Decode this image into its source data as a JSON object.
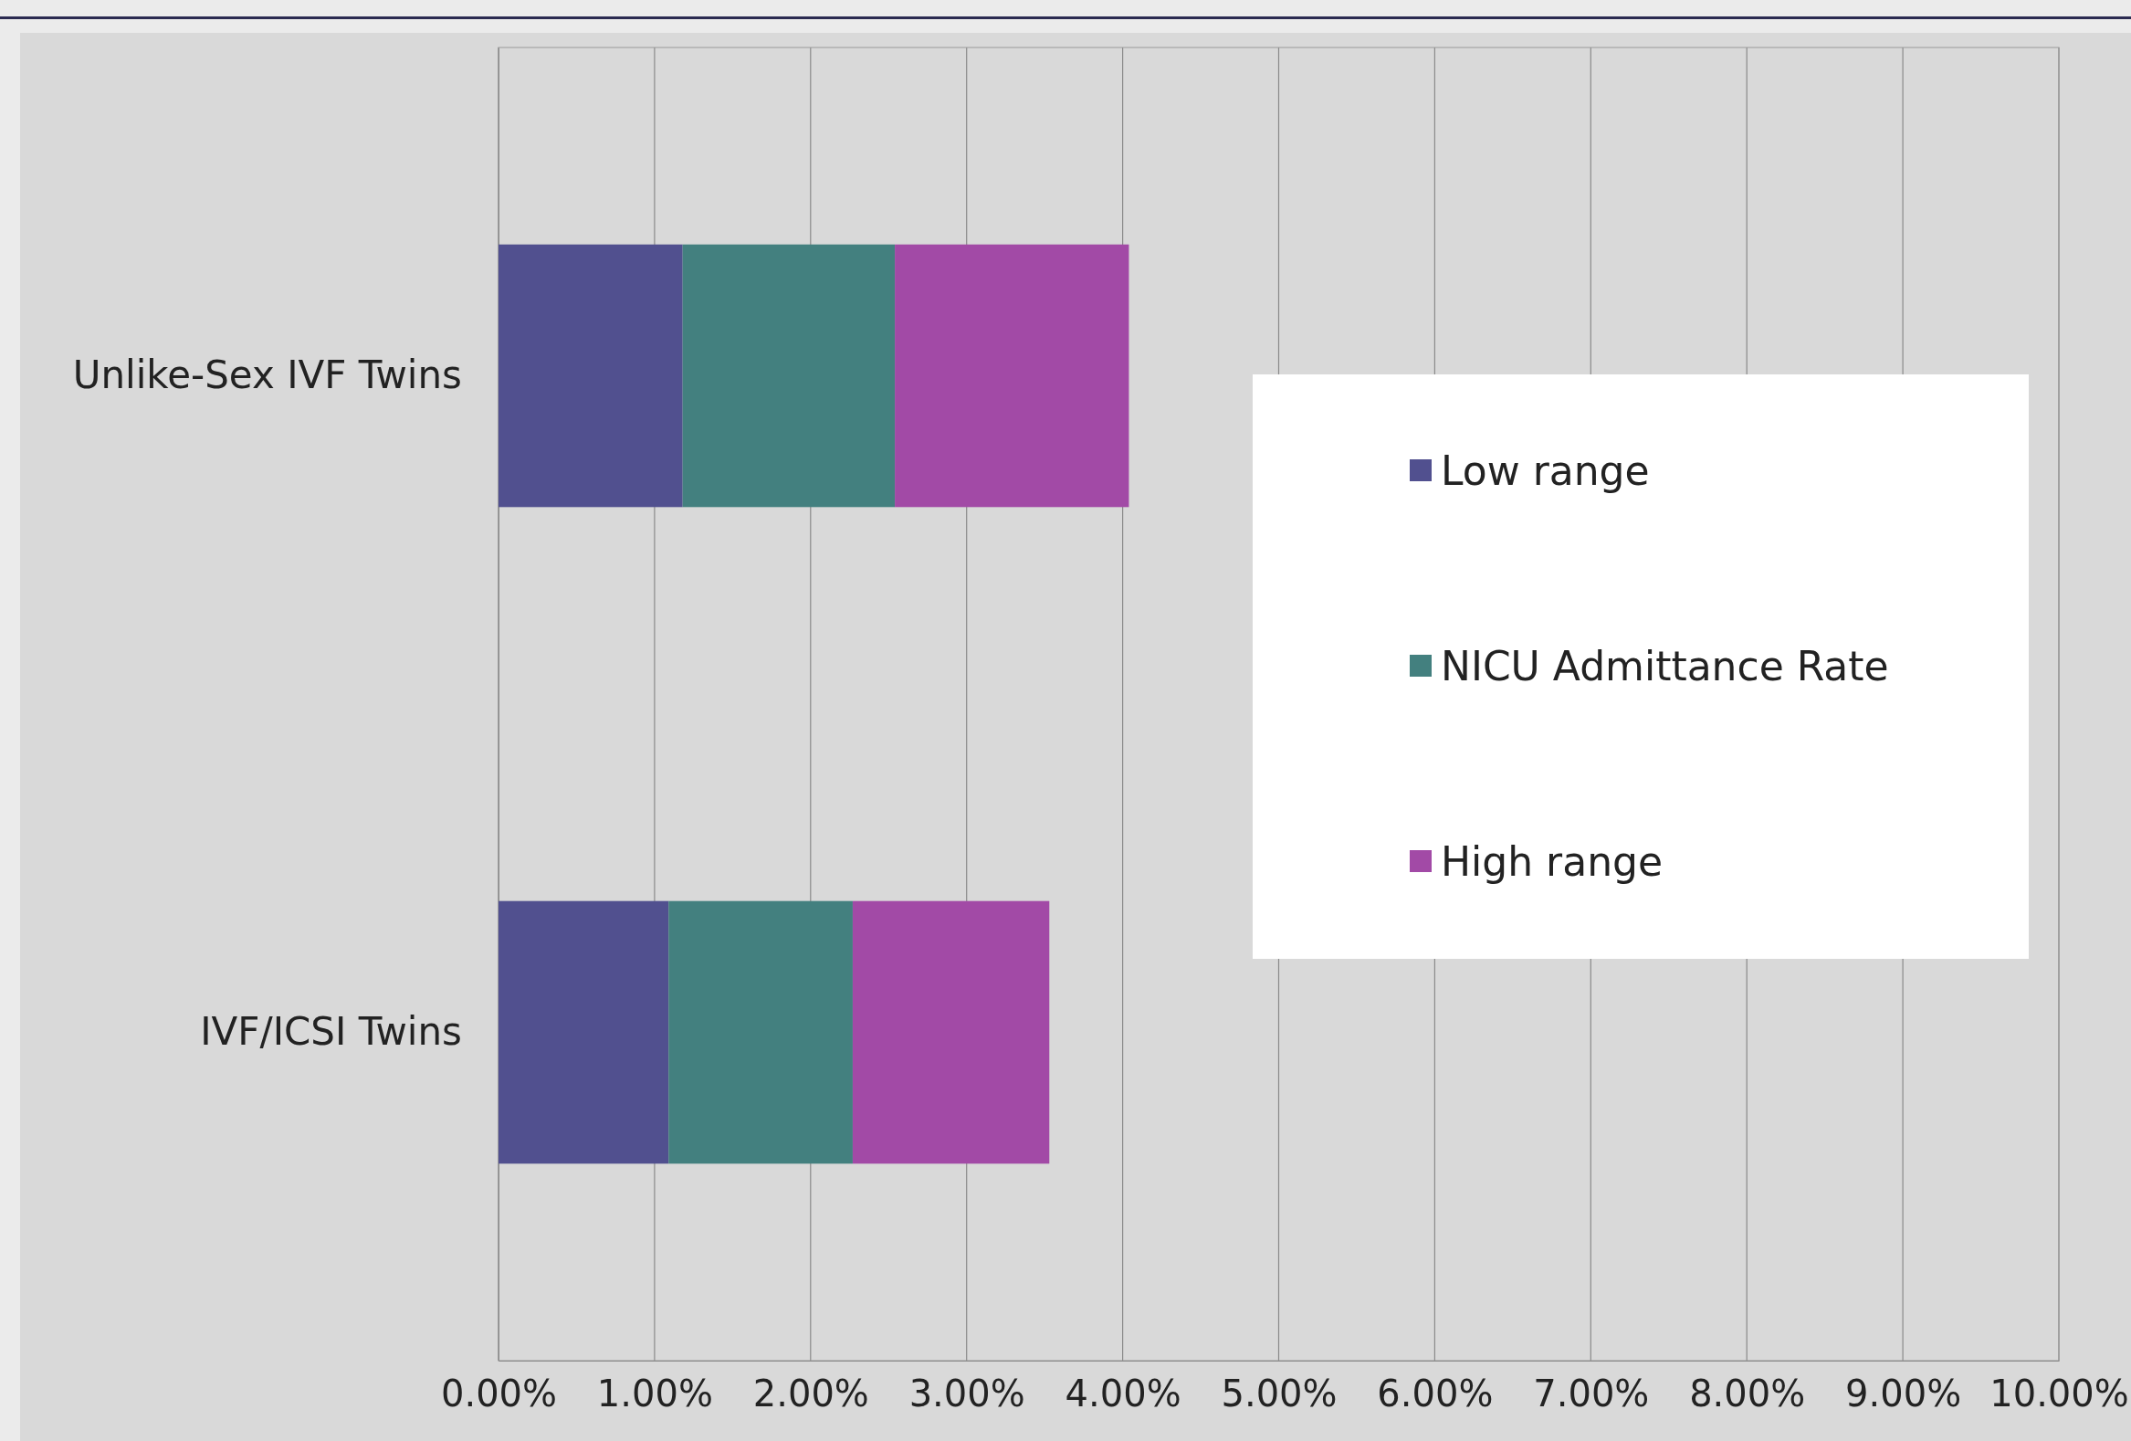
{
  "chart_data": {
    "type": "bar",
    "orientation": "horizontal",
    "stacked": true,
    "categories": [
      "Unlike-Sex IVF Twins",
      "IVF/ICSI Twins"
    ],
    "series": [
      {
        "name": "Low range",
        "color": "#51508f",
        "values": [
          1.18,
          1.09
        ]
      },
      {
        "name": "NICU Admittance Rate",
        "color": "#43807f",
        "values": [
          1.36,
          1.18
        ]
      },
      {
        "name": "High range",
        "color": "#a24aa6",
        "values": [
          1.5,
          1.26
        ]
      }
    ],
    "xlim": [
      0,
      10
    ],
    "xticks": [
      {
        "value": 0,
        "label": "0.00%"
      },
      {
        "value": 1,
        "label": "1.00%"
      },
      {
        "value": 2,
        "label": "2.00%"
      },
      {
        "value": 3,
        "label": "3.00%"
      },
      {
        "value": 4,
        "label": "4.00%"
      },
      {
        "value": 5,
        "label": "5.00%"
      },
      {
        "value": 6,
        "label": "6.00%"
      },
      {
        "value": 7,
        "label": "7.00%"
      },
      {
        "value": 8,
        "label": "8.00%"
      },
      {
        "value": 9,
        "label": "9.00%"
      },
      {
        "value": 10,
        "label": "10.00%"
      }
    ],
    "grid": "x",
    "legend": "right"
  }
}
